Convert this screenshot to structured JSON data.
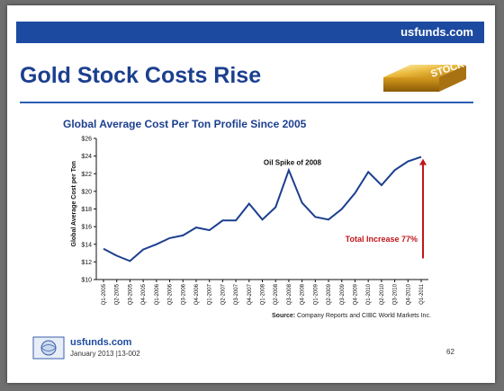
{
  "header": {
    "site": "usfunds.com"
  },
  "page_title": "Gold Stock Costs Rise",
  "logo_badge": "STOCKS",
  "chart_data": {
    "type": "line",
    "title": "Global Average Cost Per Ton Profile Since 2005",
    "ylabel": "Global Average Cost per Ton",
    "xlabel": "",
    "ylim": [
      10,
      26
    ],
    "ytick_step": 2,
    "ytick_labels": [
      "$10",
      "$12",
      "$14",
      "$16",
      "$18",
      "$20",
      "$22",
      "$24",
      "$26"
    ],
    "grid": false,
    "line_color": "#1c3f8f",
    "categories": [
      "Q1-2005",
      "Q2-2005",
      "Q3-2005",
      "Q4-2005",
      "Q1-2006",
      "Q2-2006",
      "Q3-2006",
      "Q4-2006",
      "Q1-2007",
      "Q2-2007",
      "Q3-2007",
      "Q4-2007",
      "Q1-2008",
      "Q2-2008",
      "Q3-2008",
      "Q4-2008",
      "Q1-2009",
      "Q2-2009",
      "Q3-2009",
      "Q4-2009",
      "Q1-2010",
      "Q2-2010",
      "Q3-2010",
      "Q4-2010",
      "Q1-2011"
    ],
    "values": [
      13.5,
      12.7,
      12.1,
      13.4,
      14.0,
      14.7,
      15.0,
      15.9,
      15.6,
      16.7,
      16.7,
      18.6,
      16.8,
      18.2,
      22.4,
      18.7,
      17.1,
      16.8,
      18.0,
      19.8,
      22.2,
      20.7,
      22.4,
      23.4,
      23.9
    ],
    "annotations": [
      {
        "text": "Oil Spike of 2008",
        "category": "Q3-2008",
        "value": 22.4
      },
      {
        "text": "Total Increase 77%",
        "color": "#c0161c",
        "arrow_from": 12.4,
        "arrow_to": 23.9,
        "category": "Q1-2011"
      }
    ]
  },
  "source": {
    "label": "Source:",
    "text": "Company Reports and CIBC World Markets Inc."
  },
  "footer": {
    "site": "usfunds.com",
    "date": "January 2013 |13-002",
    "page": "62"
  }
}
